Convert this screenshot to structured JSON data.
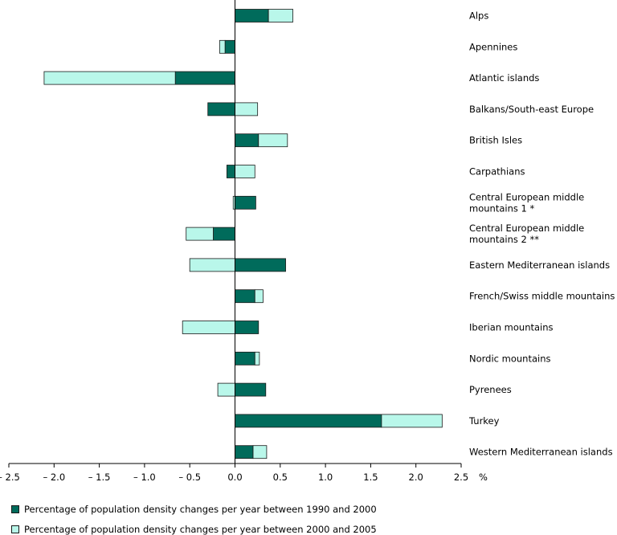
{
  "chart_data": {
    "type": "bar",
    "orientation": "horizontal",
    "stacked": true,
    "categories": [
      "Alps",
      "Apennines",
      "Atlantic islands",
      "Balkans/South-east Europe",
      "British Isles",
      "Carpathians",
      "Central European middle mountains 1 *",
      "Central European middle mountains 2 **",
      "Eastern Mediterranean islands",
      "French/Swiss middle mountains",
      "Iberian mountains",
      "Nordic mountains",
      "Pyrenees",
      "Turkey",
      "Western Mediterranean islands"
    ],
    "category_lines": [
      [
        "Alps"
      ],
      [
        "Apennines"
      ],
      [
        "Atlantic islands"
      ],
      [
        "Balkans/South-east Europe"
      ],
      [
        "British Isles"
      ],
      [
        "Carpathians"
      ],
      [
        "Central European middle",
        "mountains 1 *"
      ],
      [
        "Central European middle",
        "mountains 2 **"
      ],
      [
        "Eastern Mediterranean islands"
      ],
      [
        "French/Swiss middle mountains"
      ],
      [
        "Iberian mountains"
      ],
      [
        "Nordic mountains"
      ],
      [
        "Pyrenees"
      ],
      [
        "Turkey"
      ],
      [
        "Western Mediterranean islands"
      ]
    ],
    "series": [
      {
        "name": "Percentage of population density changes per year between 1990 and 2000",
        "color": "#006b5b",
        "values": [
          0.37,
          -0.11,
          -0.66,
          -0.3,
          0.26,
          -0.09,
          0.23,
          -0.24,
          0.56,
          0.22,
          0.26,
          0.22,
          0.34,
          1.62,
          0.2
        ]
      },
      {
        "name": "Percentage of population density changes per year between 2000 and 2005",
        "color": "#b9f7ea",
        "values": [
          0.27,
          -0.06,
          -1.45,
          0.25,
          0.32,
          0.22,
          -0.02,
          -0.3,
          -0.5,
          0.09,
          -0.58,
          0.05,
          -0.19,
          0.67,
          0.15
        ]
      }
    ],
    "xlim": [
      -2.5,
      2.5
    ],
    "xticks": [
      -2.5,
      -2.0,
      -1.5,
      -1.0,
      -0.5,
      0.0,
      0.5,
      1.0,
      1.5,
      2.0,
      2.5
    ],
    "xtick_labels": [
      "– 2.5",
      "– 2.0",
      "– 1.5",
      "– 1.0",
      "– 0.5",
      "0.0",
      "0.5",
      "1.0",
      "1.5",
      "2.0",
      "2.5"
    ],
    "xlabel": "%",
    "legend_position": "bottom-left"
  }
}
